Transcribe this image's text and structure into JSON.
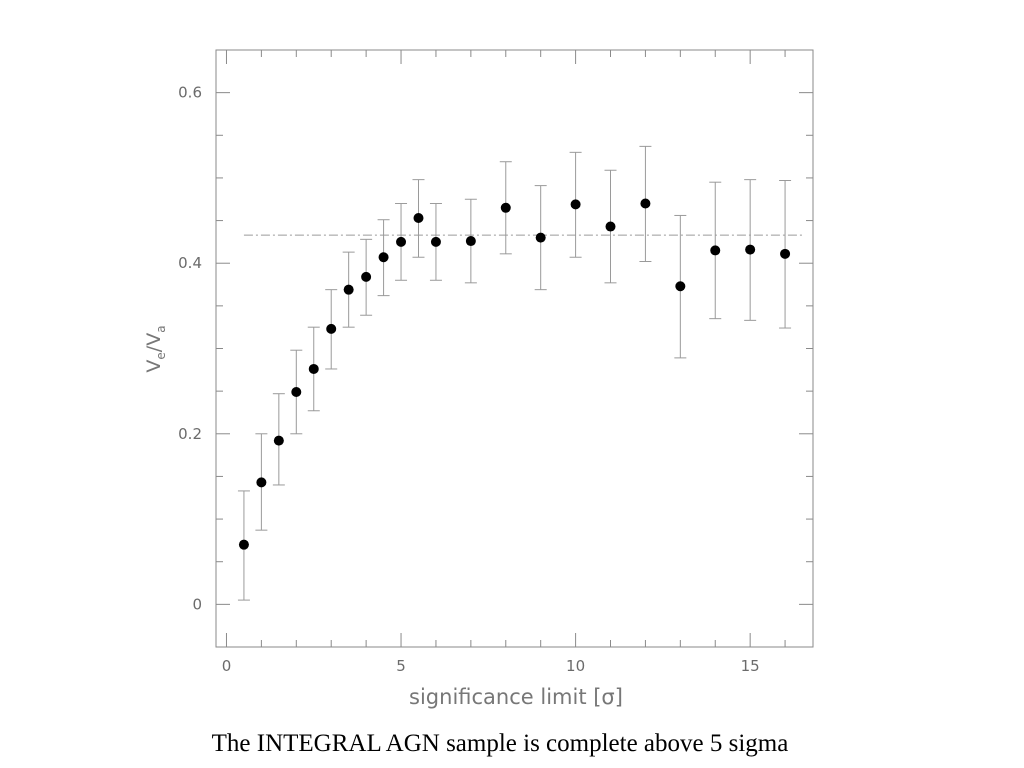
{
  "caption": "The INTEGRAL AGN sample is complete above 5 sigma",
  "chart_data": {
    "type": "scatter",
    "title": "",
    "xlabel": "significance limit [σ]",
    "ylabel_main": "V",
    "ylabel_sub1": "e",
    "ylabel_sep": "/V",
    "ylabel_sub2": "a",
    "xlim": [
      -0.3,
      16.8
    ],
    "ylim": [
      -0.05,
      0.65
    ],
    "xticks": [
      0,
      5,
      10,
      15
    ],
    "xtick_labels": [
      "0",
      "5",
      "10",
      "15"
    ],
    "yticks": [
      0,
      0.2,
      0.4,
      0.6
    ],
    "ytick_labels": [
      "0",
      "0.2",
      "0.4",
      "0.6"
    ],
    "grid": false,
    "reference_line": {
      "y": 0.433,
      "x_range": [
        0.5,
        16.5
      ],
      "style": "dash-dot"
    },
    "series": [
      {
        "points": [
          {
            "x": 0.5,
            "y": 0.07,
            "lo": 0.005,
            "hi": 0.133
          },
          {
            "x": 1.0,
            "y": 0.143,
            "lo": 0.087,
            "hi": 0.2
          },
          {
            "x": 1.5,
            "y": 0.192,
            "lo": 0.14,
            "hi": 0.247
          },
          {
            "x": 2.0,
            "y": 0.249,
            "lo": 0.2,
            "hi": 0.298
          },
          {
            "x": 2.5,
            "y": 0.276,
            "lo": 0.227,
            "hi": 0.325
          },
          {
            "x": 3.0,
            "y": 0.323,
            "lo": 0.276,
            "hi": 0.369
          },
          {
            "x": 3.5,
            "y": 0.369,
            "lo": 0.325,
            "hi": 0.413
          },
          {
            "x": 4.0,
            "y": 0.384,
            "lo": 0.339,
            "hi": 0.428
          },
          {
            "x": 4.5,
            "y": 0.407,
            "lo": 0.362,
            "hi": 0.451
          },
          {
            "x": 5.0,
            "y": 0.425,
            "lo": 0.38,
            "hi": 0.47
          },
          {
            "x": 5.5,
            "y": 0.453,
            "lo": 0.407,
            "hi": 0.498
          },
          {
            "x": 6.0,
            "y": 0.425,
            "lo": 0.38,
            "hi": 0.47
          },
          {
            "x": 7.0,
            "y": 0.426,
            "lo": 0.377,
            "hi": 0.475
          },
          {
            "x": 8.0,
            "y": 0.465,
            "lo": 0.411,
            "hi": 0.519
          },
          {
            "x": 9.0,
            "y": 0.43,
            "lo": 0.369,
            "hi": 0.491
          },
          {
            "x": 10.0,
            "y": 0.469,
            "lo": 0.407,
            "hi": 0.53
          },
          {
            "x": 11.0,
            "y": 0.443,
            "lo": 0.377,
            "hi": 0.509
          },
          {
            "x": 12.0,
            "y": 0.47,
            "lo": 0.402,
            "hi": 0.537
          },
          {
            "x": 13.0,
            "y": 0.373,
            "lo": 0.289,
            "hi": 0.456
          },
          {
            "x": 14.0,
            "y": 0.415,
            "lo": 0.335,
            "hi": 0.495
          },
          {
            "x": 15.0,
            "y": 0.416,
            "lo": 0.333,
            "hi": 0.498
          },
          {
            "x": 16.0,
            "y": 0.411,
            "lo": 0.324,
            "hi": 0.497
          }
        ]
      }
    ]
  }
}
